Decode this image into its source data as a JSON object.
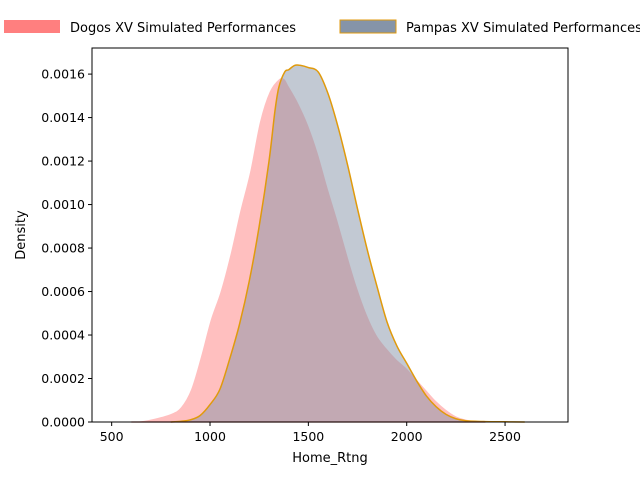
{
  "chart_data": {
    "type": "area",
    "xlabel": "Home_Rtng",
    "ylabel": "Density",
    "xlim": [
      400,
      2820
    ],
    "ylim": [
      0,
      0.00172
    ],
    "xticks": [
      "500",
      "1000",
      "1500",
      "2000",
      "2500"
    ],
    "xtick_values": [
      500,
      1000,
      1500,
      2000,
      2500
    ],
    "yticks": [
      "0.0000",
      "0.0002",
      "0.0004",
      "0.0006",
      "0.0008",
      "0.0010",
      "0.0012",
      "0.0014",
      "0.0016"
    ],
    "ytick_values": [
      0,
      0.0002,
      0.0004,
      0.0006,
      0.0008,
      0.001,
      0.0012,
      0.0014,
      0.0016
    ],
    "grid": false,
    "legend_position": "top",
    "series": [
      {
        "name": "Dogos XV Simulated Performances",
        "fill_color": "#ff7f7f",
        "fill_opacity": 0.5,
        "line_color": "#ff7f7f",
        "x": [
          600,
          700,
          800,
          850,
          900,
          950,
          1000,
          1050,
          1100,
          1150,
          1200,
          1250,
          1300,
          1350,
          1380,
          1400,
          1450,
          1500,
          1550,
          1600,
          1650,
          1700,
          1750,
          1800,
          1850,
          1900,
          1950,
          2000,
          2050,
          2100,
          2150,
          2200,
          2250,
          2300,
          2400
        ],
        "y": [
          0,
          1.5e-05,
          4e-05,
          7e-05,
          0.00015,
          0.0003,
          0.00047,
          0.0006,
          0.00077,
          0.00097,
          0.00115,
          0.00138,
          0.00152,
          0.00158,
          0.00158,
          0.00155,
          0.00147,
          0.00137,
          0.00124,
          0.00108,
          0.00093,
          0.00077,
          0.00062,
          0.000495,
          0.0004,
          0.00034,
          0.00029,
          0.00025,
          0.0002,
          0.00015,
          0.0001,
          6e-05,
          3e-05,
          1.5e-05,
          0
        ]
      },
      {
        "name": "Pampas XV Simulated Performances",
        "fill_color": "#8594a8",
        "fill_opacity": 0.5,
        "line_color": "#e09a0c",
        "x": [
          800,
          850,
          900,
          950,
          1000,
          1050,
          1100,
          1150,
          1200,
          1250,
          1300,
          1330,
          1350,
          1380,
          1400,
          1430,
          1460,
          1500,
          1550,
          1600,
          1650,
          1700,
          1750,
          1800,
          1850,
          1900,
          1950,
          2000,
          2050,
          2100,
          2150,
          2200,
          2250,
          2300,
          2400,
          2500,
          2600
        ],
        "y": [
          0,
          3e-06,
          1e-05,
          3e-05,
          8e-05,
          0.00015,
          0.00029,
          0.00045,
          0.00065,
          0.0009,
          0.0012,
          0.00143,
          0.00154,
          0.00161,
          0.00162,
          0.00164,
          0.00164,
          0.00163,
          0.00161,
          0.00151,
          0.00136,
          0.00118,
          0.00098,
          0.00079,
          0.00062,
          0.00046,
          0.00035,
          0.00027,
          0.00019,
          0.00012,
          7e-05,
          3.5e-05,
          1.5e-05,
          6e-06,
          2e-06,
          1e-06,
          0
        ]
      }
    ]
  }
}
